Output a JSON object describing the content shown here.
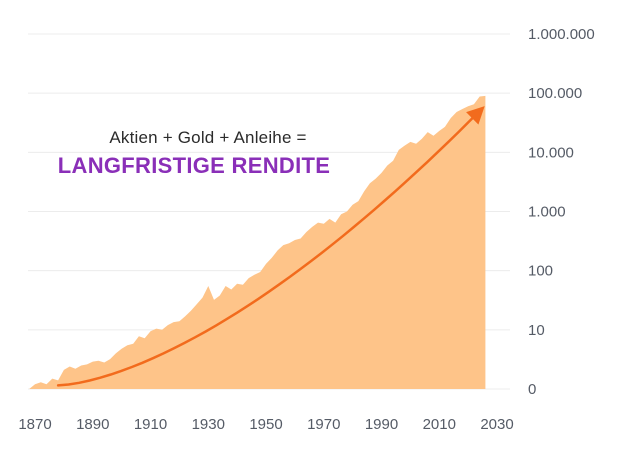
{
  "chart_data": {
    "type": "area",
    "title": "",
    "xlabel": "",
    "ylabel": "",
    "annotation": {
      "line1": "Aktien + Gold + Anleihe =",
      "line2": "LANGFRISTIGE RENDITE",
      "line2_color": "#8a2fb8"
    },
    "y_scale": "log",
    "xlim": [
      1870,
      2030
    ],
    "ylim": [
      1,
      1000000
    ],
    "x_ticks": [
      "1870",
      "1890",
      "1910",
      "1930",
      "1950",
      "1970",
      "1990",
      "2010",
      "2030"
    ],
    "y_ticks": [
      {
        "value": 1,
        "label": "0"
      },
      {
        "value": 10,
        "label": "10"
      },
      {
        "value": 100,
        "label": "100"
      },
      {
        "value": 1000,
        "label": "1.000"
      },
      {
        "value": 10000,
        "label": "10.000"
      },
      {
        "value": 100000,
        "label": "100.000"
      },
      {
        "value": 1000000,
        "label": "1.000.000"
      }
    ],
    "grid": true,
    "area_color": "#fec489",
    "trend_color": "#f26b1d",
    "series": [
      {
        "x": [
          1868,
          1870,
          1872,
          1874,
          1876,
          1878,
          1880,
          1882,
          1884,
          1886,
          1888,
          1890,
          1892,
          1894,
          1896,
          1898,
          1900,
          1902,
          1904,
          1906,
          1908,
          1910,
          1912,
          1914,
          1916,
          1918,
          1920,
          1922,
          1924,
          1926,
          1928,
          1930,
          1932,
          1934,
          1936,
          1938,
          1940,
          1942,
          1944,
          1946,
          1948,
          1950,
          1952,
          1954,
          1956,
          1958,
          1960,
          1962,
          1964,
          1966,
          1968,
          1970,
          1972,
          1974,
          1976,
          1978,
          1980,
          1982,
          1984,
          1986,
          1988,
          1990,
          1992,
          1994,
          1996,
          1998,
          2000,
          2002,
          2004,
          2006,
          2008,
          2010,
          2012,
          2014,
          2016,
          2018,
          2020,
          2022,
          2024,
          2026
        ],
        "values": [
          1.0,
          1.2,
          1.3,
          1.2,
          1.5,
          1.4,
          2.1,
          2.4,
          2.2,
          2.5,
          2.6,
          2.9,
          3.0,
          2.8,
          3.2,
          4.0,
          4.8,
          5.5,
          5.8,
          7.8,
          7.2,
          9.5,
          10.5,
          10.0,
          12.0,
          13.5,
          14.0,
          17.0,
          21.0,
          27.0,
          35.0,
          55.0,
          32.0,
          38.0,
          55.0,
          48.0,
          60.0,
          58.0,
          75.0,
          85.0,
          95.0,
          130.0,
          165.0,
          220.0,
          270.0,
          290.0,
          330.0,
          350.0,
          450.0,
          550.0,
          650.0,
          620.0,
          750.0,
          650.0,
          900.0,
          1000.0,
          1300.0,
          1500.0,
          2200.0,
          3000.0,
          3600.0,
          4500.0,
          6000.0,
          7200.0,
          11000.0,
          13000.0,
          15000.0,
          14000.0,
          17000.0,
          22000.0,
          19000.0,
          23000.0,
          27000.0,
          38000.0,
          48000.0,
          54000.0,
          60000.0,
          65000.0,
          88000.0,
          90000.0
        ]
      }
    ],
    "trend": {
      "x": [
        1878,
        2024
      ],
      "y": [
        1.15,
        50000
      ]
    }
  }
}
